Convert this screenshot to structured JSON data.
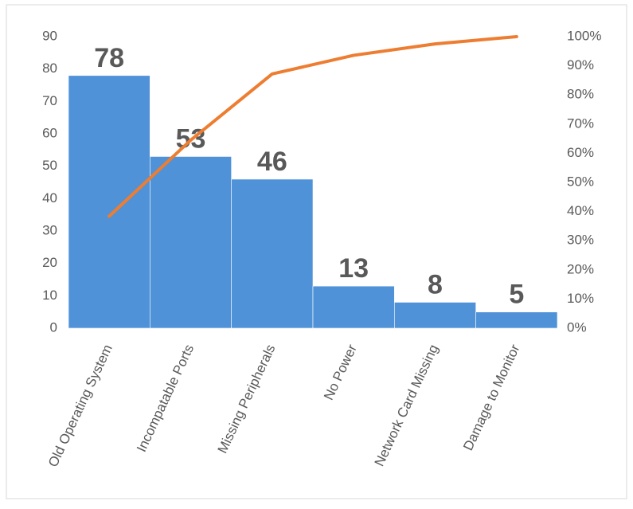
{
  "chart_data": {
    "type": "pareto",
    "categories": [
      "Old Operating System",
      "Incompatable Ports",
      "Missing Peripherals",
      "No Power",
      "Network Card Missing",
      "Damage to Monitor"
    ],
    "series": [
      {
        "type": "bar",
        "color": "#4f92d8",
        "values": [
          78,
          53,
          46,
          13,
          8,
          5
        ]
      },
      {
        "type": "line",
        "color": "#ed7d31",
        "axis": "y2",
        "values": [
          38.4,
          64.5,
          87.2,
          93.6,
          97.5,
          100
        ]
      }
    ],
    "ylim": [
      0,
      90
    ],
    "yticks": [
      0,
      10,
      20,
      30,
      40,
      50,
      60,
      70,
      80,
      90
    ],
    "y2lim": [
      0,
      100
    ],
    "y2ticks": [
      {
        "value": 0,
        "label": "0%"
      },
      {
        "value": 10,
        "label": "10%"
      },
      {
        "value": 20,
        "label": "20%"
      },
      {
        "value": 30,
        "label": "30%"
      },
      {
        "value": 40,
        "label": "40%"
      },
      {
        "value": 50,
        "label": "50%"
      },
      {
        "value": 60,
        "label": "60%"
      },
      {
        "value": 70,
        "label": "70%"
      },
      {
        "value": 80,
        "label": "80%"
      },
      {
        "value": 90,
        "label": "90%"
      },
      {
        "value": 100,
        "label": "100%"
      }
    ],
    "data_labels": true
  }
}
